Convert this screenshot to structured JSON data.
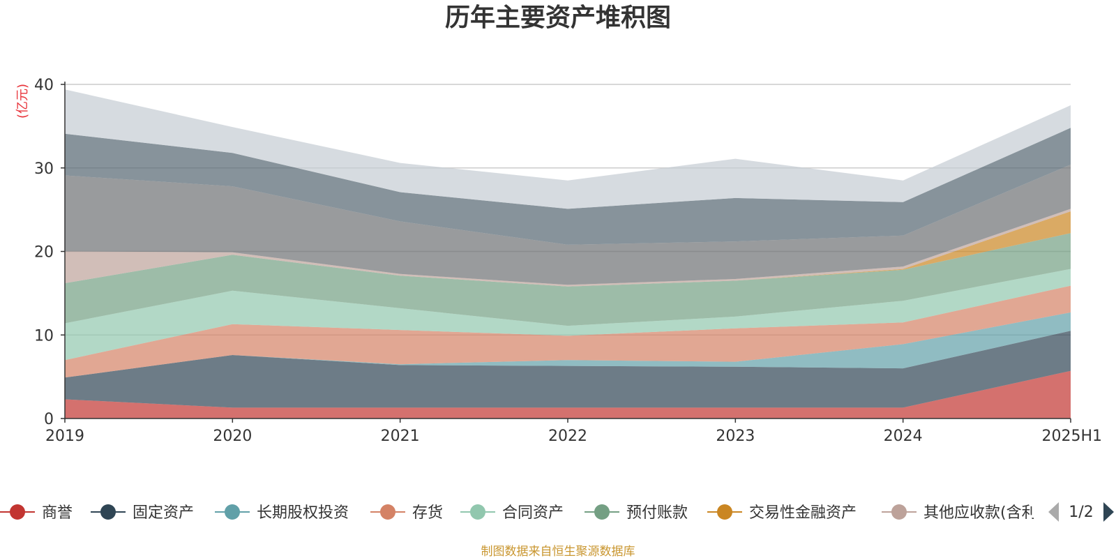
{
  "chart_data": {
    "type": "area",
    "title": "历年主要资产堆积图",
    "ylabel": "(亿元)",
    "ylim": [
      0,
      40
    ],
    "yticks": [
      "0",
      "10",
      "20",
      "30",
      "40"
    ],
    "categories": [
      "2019",
      "2020",
      "2021",
      "2022",
      "2023",
      "2024",
      "2025H1"
    ],
    "stacked": true,
    "grid": true,
    "legend_position": "bottom",
    "series": [
      {
        "name": "商誉",
        "color": "#c23531",
        "values": [
          2.3,
          1.3,
          1.3,
          1.3,
          1.3,
          1.3,
          5.7
        ]
      },
      {
        "name": "固定资产",
        "color": "#2f4554",
        "values": [
          2.6,
          6.3,
          5.1,
          5.0,
          4.9,
          4.7,
          4.8
        ]
      },
      {
        "name": "长期股权投资",
        "color": "#61a0a8",
        "values": [
          0.0,
          0.0,
          0.1,
          0.7,
          0.6,
          2.9,
          2.2
        ]
      },
      {
        "name": "存货",
        "color": "#d48265",
        "values": [
          2.1,
          3.7,
          4.1,
          2.9,
          4.0,
          2.6,
          3.2
        ]
      },
      {
        "name": "合同资产",
        "color": "#91c7ae",
        "values": [
          4.4,
          4.0,
          2.6,
          1.2,
          1.4,
          2.6,
          2.0
        ]
      },
      {
        "name": "预付账款",
        "color": "#749f83",
        "values": [
          4.8,
          4.3,
          3.9,
          4.7,
          4.3,
          3.7,
          4.3
        ]
      },
      {
        "name": "交易性金融资产",
        "color": "#ca8622",
        "values": [
          0.0,
          0.0,
          0.0,
          0.0,
          0.0,
          0.1,
          2.6
        ]
      },
      {
        "name": "其他应收款(含利息和股利)",
        "color": "#bda29a",
        "values": [
          3.8,
          0.3,
          0.2,
          0.2,
          0.2,
          0.3,
          0.3
        ]
      },
      {
        "name": "",
        "color": "#6e7074",
        "values": [
          9.1,
          7.9,
          6.3,
          4.8,
          4.5,
          3.7,
          5.3
        ]
      },
      {
        "name": "",
        "color": "#546570",
        "values": [
          5.0,
          4.0,
          3.5,
          4.3,
          5.2,
          4.0,
          4.4
        ]
      },
      {
        "name": "",
        "color": "#c4ccd3",
        "values": [
          5.3,
          3.1,
          3.5,
          3.4,
          4.7,
          2.6,
          2.7
        ]
      }
    ],
    "legend_visible_count": 8,
    "legend_page": "1/2",
    "source": "制图数据来自恒生聚源数据库"
  }
}
